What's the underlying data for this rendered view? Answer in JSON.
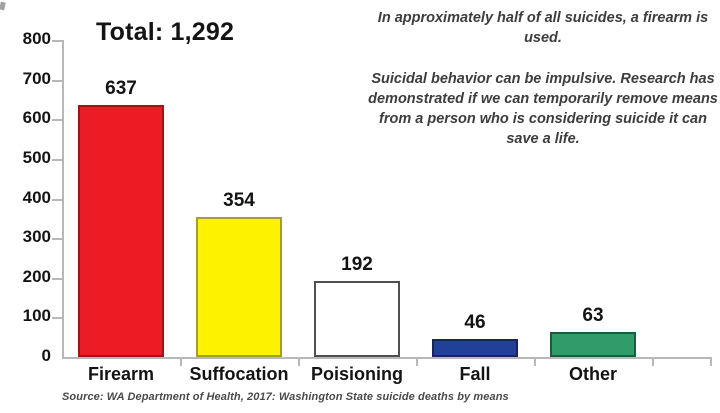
{
  "title": "Total: 1,292",
  "annotations": {
    "para1": "In approximately half of all suicides, a firearm is used.",
    "para2": "Suicidal behavior can be impulsive. Research has demonstrated if we can temporarily remove means from a person who is considering suicide it can save a life."
  },
  "source": "Source: WA Department of Health, 2017: Washington State suicide deaths by means",
  "chart_data": {
    "type": "bar",
    "title": "Total: 1,292",
    "categories": [
      "Firearm",
      "Suffocation",
      "Poisioning",
      "Fall",
      "Other"
    ],
    "values": [
      637,
      354,
      192,
      46,
      63
    ],
    "total": 1292,
    "bar_colors": [
      "#ec1c24",
      "#fdf200",
      "#ffffff",
      "#21409a",
      "#2f9c69"
    ],
    "bar_border_colors": [
      "#9e1419",
      "#a3a02a",
      "#4f4f4f",
      "#16265c",
      "#1c5b3d"
    ],
    "xlabel": "",
    "ylabel": "",
    "ylim": [
      0,
      800
    ],
    "yticks": [
      0,
      100,
      200,
      300,
      400,
      500,
      600,
      700,
      800
    ],
    "grid": false,
    "legend": false,
    "axis_color": "#b8b8b8"
  }
}
